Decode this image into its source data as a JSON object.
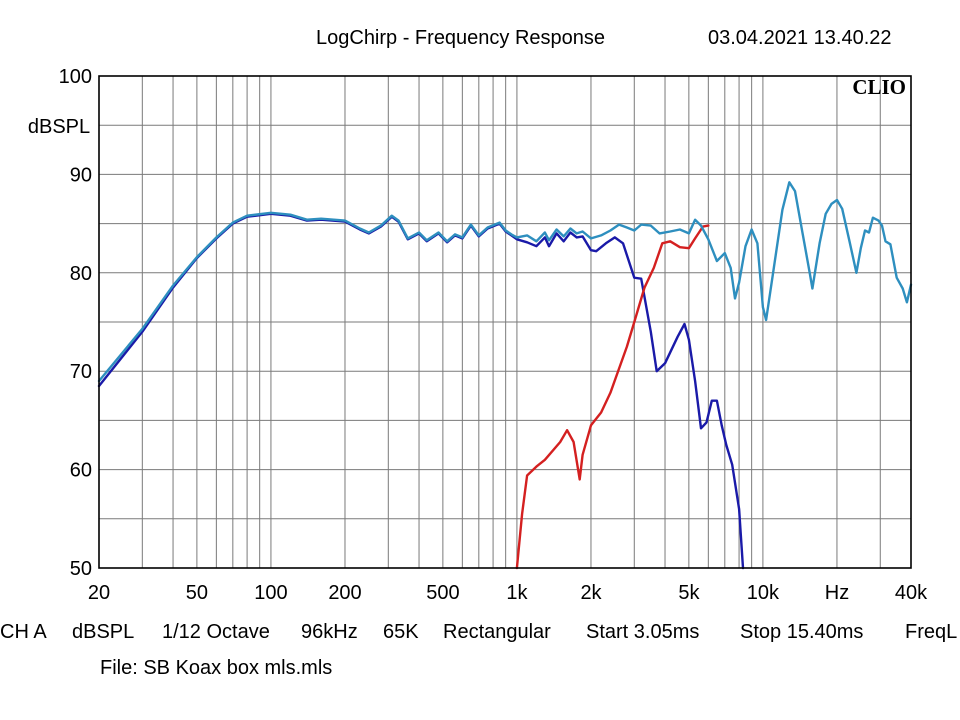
{
  "header": {
    "title": "LogChirp - Frequency Response",
    "datetime": "03.04.2021 13.40.22",
    "brand": "CLIO"
  },
  "status": {
    "channel": "CH A",
    "unit": "dBSPL",
    "smoothing": "1/12 Octave",
    "sample_rate": "96kHz",
    "size": "65K",
    "window": "Rectangular",
    "start": "Start 3.05ms",
    "stop": "Stop 15.40ms",
    "mode": "FreqL"
  },
  "file": "File: SB Koax  box mls.mls",
  "chart_data": {
    "type": "line",
    "title": "LogChirp - Frequency Response",
    "xlabel": "Hz",
    "ylabel": "dBSPL",
    "xscale": "log",
    "xlim": [
      20,
      40000
    ],
    "ylim": [
      50,
      100
    ],
    "grid": true,
    "legend": "none",
    "x_ticks": [
      {
        "value": 20,
        "label": "20"
      },
      {
        "value": 50,
        "label": "50"
      },
      {
        "value": 100,
        "label": "100"
      },
      {
        "value": 200,
        "label": "200"
      },
      {
        "value": 500,
        "label": "500"
      },
      {
        "value": 1000,
        "label": "1k"
      },
      {
        "value": 2000,
        "label": "2k"
      },
      {
        "value": 5000,
        "label": "5k"
      },
      {
        "value": 10000,
        "label": "10k"
      },
      {
        "value": 20000,
        "label": "Hz"
      },
      {
        "value": 40000,
        "label": "40k"
      }
    ],
    "y_ticks": [
      {
        "value": 100,
        "label": "100"
      },
      {
        "value": 90,
        "label": "90"
      },
      {
        "value": 80,
        "label": "80"
      },
      {
        "value": 70,
        "label": "70"
      },
      {
        "value": 60,
        "label": "60"
      },
      {
        "value": 50,
        "label": "50"
      }
    ],
    "series": [
      {
        "color": "#1a1aa8",
        "points": [
          [
            20,
            68.5
          ],
          [
            30,
            74
          ],
          [
            40,
            78.5
          ],
          [
            50,
            81.5
          ],
          [
            60,
            83.5
          ],
          [
            70,
            85
          ],
          [
            80,
            85.7
          ],
          [
            100,
            86
          ],
          [
            120,
            85.8
          ],
          [
            140,
            85.3
          ],
          [
            160,
            85.4
          ],
          [
            200,
            85.2
          ],
          [
            230,
            84.4
          ],
          [
            250,
            84
          ],
          [
            280,
            84.7
          ],
          [
            310,
            85.7
          ],
          [
            330,
            85.2
          ],
          [
            360,
            83.4
          ],
          [
            400,
            84
          ],
          [
            430,
            83.2
          ],
          [
            480,
            84
          ],
          [
            520,
            83.1
          ],
          [
            560,
            83.8
          ],
          [
            600,
            83.5
          ],
          [
            650,
            84.8
          ],
          [
            700,
            83.7
          ],
          [
            760,
            84.5
          ],
          [
            850,
            85
          ],
          [
            900,
            84.2
          ],
          [
            950,
            83.8
          ],
          [
            1000,
            83.4
          ],
          [
            1100,
            83.1
          ],
          [
            1200,
            82.7
          ],
          [
            1300,
            83.6
          ],
          [
            1350,
            82.7
          ],
          [
            1450,
            84
          ],
          [
            1550,
            83.2
          ],
          [
            1650,
            84.1
          ],
          [
            1750,
            83.6
          ],
          [
            1850,
            83.7
          ],
          [
            2000,
            82.3
          ],
          [
            2100,
            82.2
          ],
          [
            2300,
            83
          ],
          [
            2500,
            83.6
          ],
          [
            2700,
            83
          ],
          [
            3000,
            79.5
          ],
          [
            3200,
            79.4
          ],
          [
            3500,
            74
          ],
          [
            3700,
            70
          ],
          [
            4000,
            70.8
          ],
          [
            4500,
            73.5
          ],
          [
            4800,
            74.8
          ],
          [
            5000,
            73.2
          ],
          [
            5300,
            69
          ],
          [
            5600,
            64.2
          ],
          [
            5900,
            64.8
          ],
          [
            6200,
            67
          ],
          [
            6500,
            67
          ],
          [
            6800,
            64.5
          ],
          [
            7100,
            62.5
          ],
          [
            7500,
            60.5
          ],
          [
            8000,
            56
          ],
          [
            8300,
            50
          ]
        ]
      },
      {
        "color": "#d42020",
        "points": [
          [
            1000,
            50
          ],
          [
            1050,
            55.5
          ],
          [
            1100,
            59.4
          ],
          [
            1200,
            60.3
          ],
          [
            1300,
            61
          ],
          [
            1500,
            62.8
          ],
          [
            1600,
            64
          ],
          [
            1700,
            62.8
          ],
          [
            1800,
            59
          ],
          [
            1850,
            61.5
          ],
          [
            2000,
            64.5
          ],
          [
            2200,
            65.8
          ],
          [
            2400,
            67.8
          ],
          [
            2800,
            72.5
          ],
          [
            3000,
            75
          ],
          [
            3300,
            78.5
          ],
          [
            3600,
            80.5
          ],
          [
            3900,
            83
          ],
          [
            4200,
            83.2
          ],
          [
            4600,
            82.6
          ],
          [
            5000,
            82.5
          ],
          [
            5300,
            83.5
          ],
          [
            5700,
            84.7
          ],
          [
            6000,
            84.8
          ]
        ]
      },
      {
        "color": "#2e8fbf",
        "points": [
          [
            20,
            69
          ],
          [
            30,
            74.3
          ],
          [
            40,
            78.7
          ],
          [
            50,
            81.6
          ],
          [
            60,
            83.6
          ],
          [
            70,
            85.1
          ],
          [
            80,
            85.8
          ],
          [
            100,
            86.1
          ],
          [
            120,
            85.9
          ],
          [
            140,
            85.4
          ],
          [
            160,
            85.5
          ],
          [
            200,
            85.3
          ],
          [
            230,
            84.5
          ],
          [
            250,
            84.1
          ],
          [
            280,
            84.8
          ],
          [
            310,
            85.8
          ],
          [
            330,
            85.3
          ],
          [
            360,
            83.5
          ],
          [
            400,
            84.1
          ],
          [
            430,
            83.3
          ],
          [
            480,
            84.1
          ],
          [
            520,
            83.2
          ],
          [
            560,
            83.9
          ],
          [
            600,
            83.6
          ],
          [
            650,
            84.9
          ],
          [
            700,
            83.8
          ],
          [
            760,
            84.6
          ],
          [
            850,
            85.1
          ],
          [
            900,
            84.3
          ],
          [
            950,
            83.9
          ],
          [
            1000,
            83.6
          ],
          [
            1100,
            83.8
          ],
          [
            1200,
            83.2
          ],
          [
            1300,
            84.1
          ],
          [
            1350,
            83.3
          ],
          [
            1450,
            84.4
          ],
          [
            1550,
            83.7
          ],
          [
            1650,
            84.5
          ],
          [
            1750,
            84
          ],
          [
            1850,
            84.2
          ],
          [
            2000,
            83.5
          ],
          [
            2200,
            83.8
          ],
          [
            2400,
            84.3
          ],
          [
            2600,
            84.9
          ],
          [
            2800,
            84.6
          ],
          [
            3000,
            84.3
          ],
          [
            3200,
            84.9
          ],
          [
            3500,
            84.8
          ],
          [
            3800,
            84
          ],
          [
            4200,
            84.2
          ],
          [
            4600,
            84.4
          ],
          [
            5000,
            84
          ],
          [
            5300,
            85.4
          ],
          [
            5600,
            84.8
          ],
          [
            6000,
            83.4
          ],
          [
            6500,
            81.2
          ],
          [
            7000,
            82
          ],
          [
            7400,
            80.5
          ],
          [
            7700,
            77.4
          ],
          [
            8000,
            79
          ],
          [
            8500,
            82.7
          ],
          [
            9000,
            84.4
          ],
          [
            9500,
            83
          ],
          [
            10000,
            76.5
          ],
          [
            10300,
            75.2
          ],
          [
            11000,
            80
          ],
          [
            12000,
            86.4
          ],
          [
            12800,
            89.2
          ],
          [
            13500,
            88.3
          ],
          [
            14500,
            84
          ],
          [
            15500,
            80
          ],
          [
            15900,
            78.4
          ],
          [
            17000,
            83
          ],
          [
            18000,
            86
          ],
          [
            19000,
            87
          ],
          [
            20000,
            87.4
          ],
          [
            21000,
            86.5
          ],
          [
            22500,
            83.2
          ],
          [
            24000,
            80
          ],
          [
            25000,
            82.5
          ],
          [
            26000,
            84.3
          ],
          [
            27000,
            84.1
          ],
          [
            28000,
            85.6
          ],
          [
            29500,
            85.3
          ],
          [
            30500,
            84.8
          ],
          [
            31500,
            83.2
          ],
          [
            33000,
            82.9
          ],
          [
            35000,
            79.5
          ],
          [
            37000,
            78.4
          ],
          [
            38500,
            77
          ],
          [
            40000,
            78.8
          ]
        ]
      }
    ]
  }
}
